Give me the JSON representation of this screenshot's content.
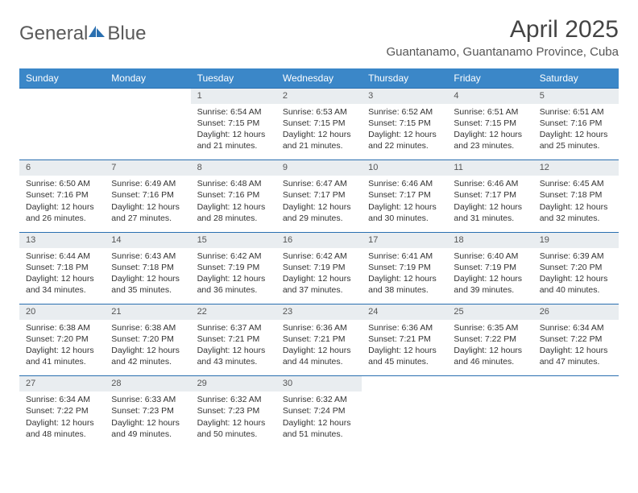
{
  "logo": {
    "text_gray": "General",
    "text_blue": "Blue"
  },
  "header": {
    "month_title": "April 2025",
    "location": "Guantanamo, Guantanamo Province, Cuba"
  },
  "colors": {
    "header_bg": "#3b87c8",
    "header_text": "#ffffff",
    "daynum_bg": "#e9edf0",
    "row_border": "#2a6fb0",
    "body_text": "#333333",
    "title_text": "#444444",
    "location_text": "#555555"
  },
  "day_headers": [
    "Sunday",
    "Monday",
    "Tuesday",
    "Wednesday",
    "Thursday",
    "Friday",
    "Saturday"
  ],
  "weeks": [
    [
      null,
      null,
      {
        "n": "1",
        "sunrise": "Sunrise: 6:54 AM",
        "sunset": "Sunset: 7:15 PM",
        "day1": "Daylight: 12 hours",
        "day2": "and 21 minutes."
      },
      {
        "n": "2",
        "sunrise": "Sunrise: 6:53 AM",
        "sunset": "Sunset: 7:15 PM",
        "day1": "Daylight: 12 hours",
        "day2": "and 21 minutes."
      },
      {
        "n": "3",
        "sunrise": "Sunrise: 6:52 AM",
        "sunset": "Sunset: 7:15 PM",
        "day1": "Daylight: 12 hours",
        "day2": "and 22 minutes."
      },
      {
        "n": "4",
        "sunrise": "Sunrise: 6:51 AM",
        "sunset": "Sunset: 7:15 PM",
        "day1": "Daylight: 12 hours",
        "day2": "and 23 minutes."
      },
      {
        "n": "5",
        "sunrise": "Sunrise: 6:51 AM",
        "sunset": "Sunset: 7:16 PM",
        "day1": "Daylight: 12 hours",
        "day2": "and 25 minutes."
      }
    ],
    [
      {
        "n": "6",
        "sunrise": "Sunrise: 6:50 AM",
        "sunset": "Sunset: 7:16 PM",
        "day1": "Daylight: 12 hours",
        "day2": "and 26 minutes."
      },
      {
        "n": "7",
        "sunrise": "Sunrise: 6:49 AM",
        "sunset": "Sunset: 7:16 PM",
        "day1": "Daylight: 12 hours",
        "day2": "and 27 minutes."
      },
      {
        "n": "8",
        "sunrise": "Sunrise: 6:48 AM",
        "sunset": "Sunset: 7:16 PM",
        "day1": "Daylight: 12 hours",
        "day2": "and 28 minutes."
      },
      {
        "n": "9",
        "sunrise": "Sunrise: 6:47 AM",
        "sunset": "Sunset: 7:17 PM",
        "day1": "Daylight: 12 hours",
        "day2": "and 29 minutes."
      },
      {
        "n": "10",
        "sunrise": "Sunrise: 6:46 AM",
        "sunset": "Sunset: 7:17 PM",
        "day1": "Daylight: 12 hours",
        "day2": "and 30 minutes."
      },
      {
        "n": "11",
        "sunrise": "Sunrise: 6:46 AM",
        "sunset": "Sunset: 7:17 PM",
        "day1": "Daylight: 12 hours",
        "day2": "and 31 minutes."
      },
      {
        "n": "12",
        "sunrise": "Sunrise: 6:45 AM",
        "sunset": "Sunset: 7:18 PM",
        "day1": "Daylight: 12 hours",
        "day2": "and 32 minutes."
      }
    ],
    [
      {
        "n": "13",
        "sunrise": "Sunrise: 6:44 AM",
        "sunset": "Sunset: 7:18 PM",
        "day1": "Daylight: 12 hours",
        "day2": "and 34 minutes."
      },
      {
        "n": "14",
        "sunrise": "Sunrise: 6:43 AM",
        "sunset": "Sunset: 7:18 PM",
        "day1": "Daylight: 12 hours",
        "day2": "and 35 minutes."
      },
      {
        "n": "15",
        "sunrise": "Sunrise: 6:42 AM",
        "sunset": "Sunset: 7:19 PM",
        "day1": "Daylight: 12 hours",
        "day2": "and 36 minutes."
      },
      {
        "n": "16",
        "sunrise": "Sunrise: 6:42 AM",
        "sunset": "Sunset: 7:19 PM",
        "day1": "Daylight: 12 hours",
        "day2": "and 37 minutes."
      },
      {
        "n": "17",
        "sunrise": "Sunrise: 6:41 AM",
        "sunset": "Sunset: 7:19 PM",
        "day1": "Daylight: 12 hours",
        "day2": "and 38 minutes."
      },
      {
        "n": "18",
        "sunrise": "Sunrise: 6:40 AM",
        "sunset": "Sunset: 7:19 PM",
        "day1": "Daylight: 12 hours",
        "day2": "and 39 minutes."
      },
      {
        "n": "19",
        "sunrise": "Sunrise: 6:39 AM",
        "sunset": "Sunset: 7:20 PM",
        "day1": "Daylight: 12 hours",
        "day2": "and 40 minutes."
      }
    ],
    [
      {
        "n": "20",
        "sunrise": "Sunrise: 6:38 AM",
        "sunset": "Sunset: 7:20 PM",
        "day1": "Daylight: 12 hours",
        "day2": "and 41 minutes."
      },
      {
        "n": "21",
        "sunrise": "Sunrise: 6:38 AM",
        "sunset": "Sunset: 7:20 PM",
        "day1": "Daylight: 12 hours",
        "day2": "and 42 minutes."
      },
      {
        "n": "22",
        "sunrise": "Sunrise: 6:37 AM",
        "sunset": "Sunset: 7:21 PM",
        "day1": "Daylight: 12 hours",
        "day2": "and 43 minutes."
      },
      {
        "n": "23",
        "sunrise": "Sunrise: 6:36 AM",
        "sunset": "Sunset: 7:21 PM",
        "day1": "Daylight: 12 hours",
        "day2": "and 44 minutes."
      },
      {
        "n": "24",
        "sunrise": "Sunrise: 6:36 AM",
        "sunset": "Sunset: 7:21 PM",
        "day1": "Daylight: 12 hours",
        "day2": "and 45 minutes."
      },
      {
        "n": "25",
        "sunrise": "Sunrise: 6:35 AM",
        "sunset": "Sunset: 7:22 PM",
        "day1": "Daylight: 12 hours",
        "day2": "and 46 minutes."
      },
      {
        "n": "26",
        "sunrise": "Sunrise: 6:34 AM",
        "sunset": "Sunset: 7:22 PM",
        "day1": "Daylight: 12 hours",
        "day2": "and 47 minutes."
      }
    ],
    [
      {
        "n": "27",
        "sunrise": "Sunrise: 6:34 AM",
        "sunset": "Sunset: 7:22 PM",
        "day1": "Daylight: 12 hours",
        "day2": "and 48 minutes."
      },
      {
        "n": "28",
        "sunrise": "Sunrise: 6:33 AM",
        "sunset": "Sunset: 7:23 PM",
        "day1": "Daylight: 12 hours",
        "day2": "and 49 minutes."
      },
      {
        "n": "29",
        "sunrise": "Sunrise: 6:32 AM",
        "sunset": "Sunset: 7:23 PM",
        "day1": "Daylight: 12 hours",
        "day2": "and 50 minutes."
      },
      {
        "n": "30",
        "sunrise": "Sunrise: 6:32 AM",
        "sunset": "Sunset: 7:24 PM",
        "day1": "Daylight: 12 hours",
        "day2": "and 51 minutes."
      },
      null,
      null,
      null
    ]
  ]
}
